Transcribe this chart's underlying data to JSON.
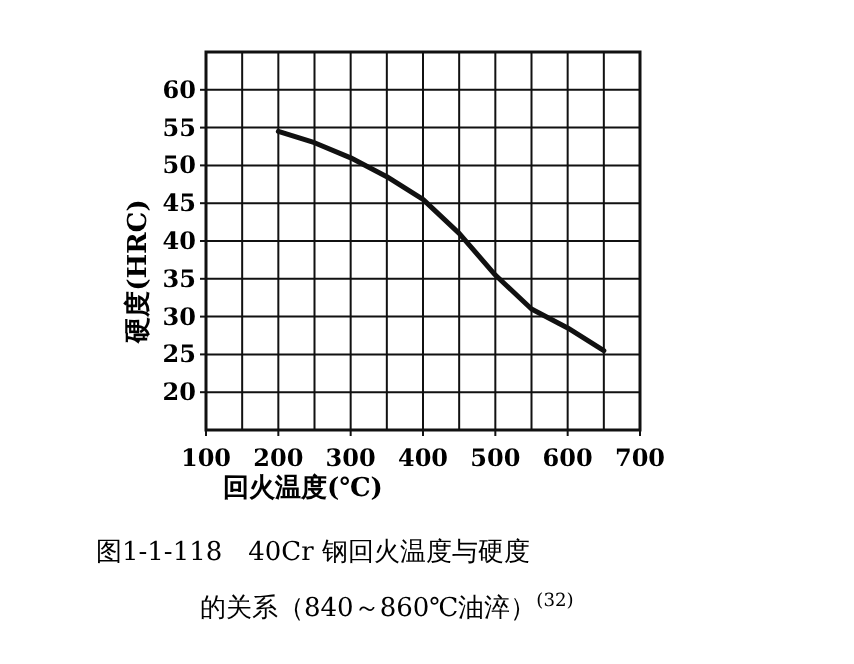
{
  "chart_data": {
    "type": "line",
    "title": "图1-1-118　40Cr 钢回火温度与硬度",
    "subtitle": "的关系（840～860℃油淬）$^{(32)}$",
    "xlabel": "回火温度(℃)",
    "ylabel": "硬度(HRC)",
    "x": [
      200,
      250,
      300,
      350,
      400,
      450,
      500,
      550,
      600,
      650
    ],
    "series": [
      {
        "color": "#111111",
        "values": [
          54.5,
          53,
          51,
          48.5,
          45.5,
          41,
          35.5,
          31,
          28.5,
          25.5
        ]
      }
    ],
    "xlim": [
      100,
      700
    ],
    "xticks": [
      100,
      200,
      300,
      400,
      500,
      600,
      700
    ],
    "ylim": [
      15,
      65
    ],
    "yticks": [
      20,
      25,
      30,
      35,
      40,
      45,
      50,
      55,
      60
    ],
    "grid": true,
    "marker": "none",
    "line_style": "solid"
  }
}
